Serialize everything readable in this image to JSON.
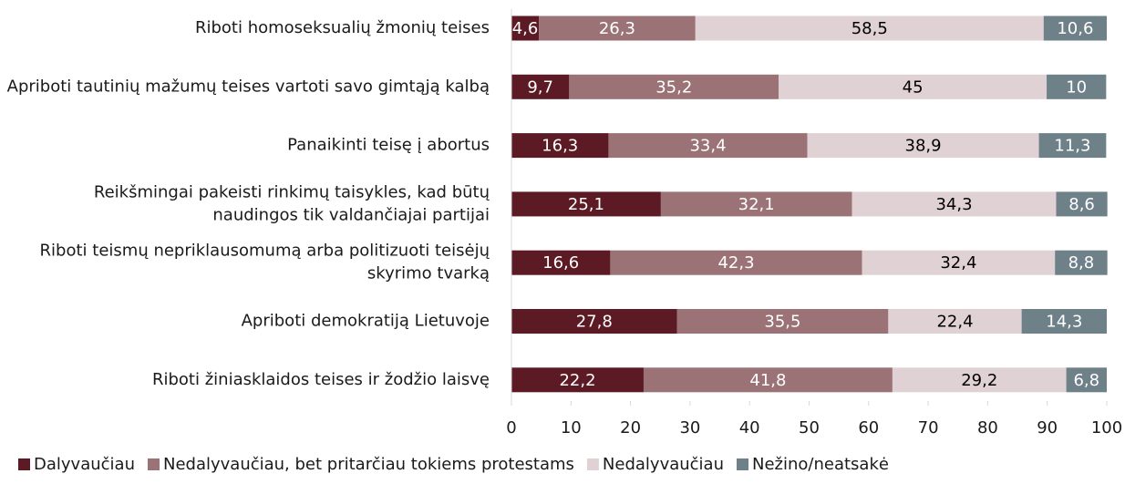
{
  "chart_data": {
    "type": "stacked-bar-horizontal",
    "categories": [
      "Riboti homoseksualių žmonių teises",
      "Apriboti tautinių mažumų teises vartoti savo gimtąją kalbą",
      "Panaikinti teisę į abortus",
      "Reikšmingai pakeisti rinkimų taisykles, kad būtų naudingos tik valdančiajai partijai",
      "Riboti teismų nepriklausomumą arba politizuoti teisėjų skyrimo tvarką",
      "Apriboti demokratiją Lietuvoje",
      "Riboti žiniasklaidos teises ir žodžio laisvę"
    ],
    "series": [
      {
        "name": "Dalyvaučiau",
        "color": "#5c1a24",
        "label_color": "#ffffff",
        "values": [
          4.6,
          9.7,
          16.3,
          25.1,
          16.6,
          27.8,
          22.2
        ],
        "value_labels": [
          "4,6",
          "9,7",
          "16,3",
          "25,1",
          "16,6",
          "27,8",
          "22,2"
        ]
      },
      {
        "name": "Nedalyvaučiau, bet pritarčiau tokiems protestams",
        "color": "#9b7276",
        "label_color": "#ffffff",
        "values": [
          26.3,
          35.2,
          33.4,
          32.1,
          42.3,
          35.5,
          41.8
        ],
        "value_labels": [
          "26,3",
          "35,2",
          "33,4",
          "32,1",
          "42,3",
          "35,5",
          "41,8"
        ]
      },
      {
        "name": "Nedalyvaučiau",
        "color": "#e0d1d4",
        "label_color": "#000000",
        "values": [
          58.5,
          45,
          38.9,
          34.3,
          32.4,
          22.4,
          29.2
        ],
        "value_labels": [
          "58,5",
          "45",
          "38,9",
          "34,3",
          "32,4",
          "22,4",
          "29,2"
        ]
      },
      {
        "name": "Nežino/neatsakė",
        "color": "#6e8088",
        "label_color": "#ffffff",
        "values": [
          10.6,
          10,
          11.3,
          8.6,
          8.8,
          14.3,
          6.8
        ],
        "value_labels": [
          "10,6",
          "10",
          "11,3",
          "8,6",
          "8,8",
          "14,3",
          "6,8"
        ]
      }
    ],
    "xlim": [
      0,
      100
    ],
    "xticks": [
      0,
      10,
      20,
      30,
      40,
      50,
      60,
      70,
      80,
      90,
      100
    ],
    "grid": false,
    "legend": "bottom"
  }
}
